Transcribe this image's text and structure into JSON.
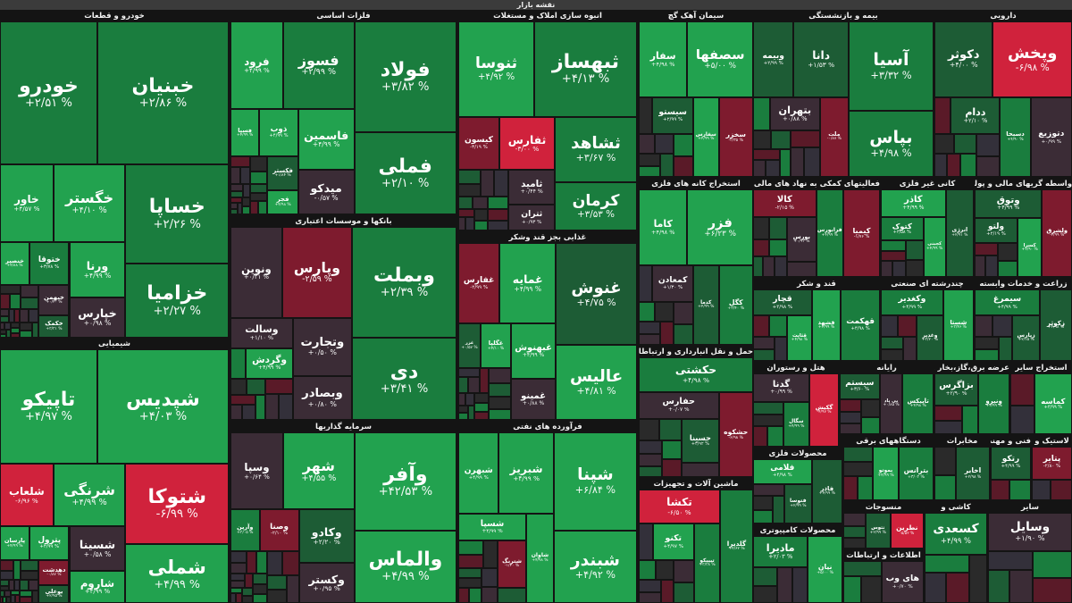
{
  "title": "نقشه بازار",
  "sectors": [
    {
      "title": "خودرو و قطعات",
      "tiles": [
        {
          "name": "خبنیان",
          "change": "+۲/۸۶ %",
          "color": "#1a7d3e"
        },
        {
          "name": "خودرو",
          "change": "+۲/۵۱ %",
          "color": "#1a7d3e"
        },
        {
          "name": "خساپا",
          "change": "+۲/۲۶ %",
          "color": "#1a7d3e"
        },
        {
          "name": "خزامیا",
          "change": "+۲/۲۷ %",
          "color": "#1a7d3e"
        },
        {
          "name": "خگستر",
          "change": "+۴/۱۰ %",
          "color": "#22a24f"
        },
        {
          "name": "خاور",
          "change": "+۴/۵۷ %",
          "color": "#22a24f"
        },
        {
          "name": "ورنا",
          "change": "+۴/۹۹ %",
          "color": "#22a24f"
        },
        {
          "name": "خپارس",
          "change": "+۰/۹۸ %",
          "color": "#3b2c36"
        },
        {
          "name": "ختوقا",
          "change": "+۳/۷۸ %",
          "color": "#1a7d3e"
        },
        {
          "name": "خنصیر",
          "change": "+۴/۸۸ %",
          "color": "#22a24f"
        },
        {
          "name": "خبهمن",
          "change": "+۰/۴۰ %",
          "color": "#3b2c36"
        },
        {
          "name": "خکمک",
          "change": "+۳/۳۱ %",
          "color": "#1d5c35"
        }
      ]
    },
    {
      "title": "شیمیایی",
      "tiles": [
        {
          "name": "شپدیس",
          "change": "+۴/۰۳ %",
          "color": "#22a24f"
        },
        {
          "name": "تاپیکو",
          "change": "+۴/۹۷ %",
          "color": "#22a24f"
        },
        {
          "name": "شتوکا",
          "change": "-۶/۹۹ %",
          "color": "#d0223c"
        },
        {
          "name": "شملی",
          "change": "+۴/۹۹ %",
          "color": "#22a24f"
        },
        {
          "name": "شرنگی",
          "change": "+۴/۹۹ %",
          "color": "#22a24f"
        },
        {
          "name": "شلعاب",
          "change": "-۶/۹۶ %",
          "color": "#d0223c"
        },
        {
          "name": "شسینا",
          "change": "+۰/۵۸ %",
          "color": "#3b2c36"
        },
        {
          "name": "شاروم",
          "change": "+۴/۹۹ %",
          "color": "#22a24f"
        },
        {
          "name": "پترول",
          "change": "+۴/۹۹ %",
          "color": "#22a24f"
        },
        {
          "name": "پارسان",
          "change": "+۴/۹۹ %",
          "color": "#22a24f"
        },
        {
          "name": "دهدشت",
          "change": "-۰/۸۷ %",
          "color": "#7e1b2e"
        },
        {
          "name": "بوعلی",
          "change": "+۲/۹۵ %",
          "color": "#1d5c35"
        }
      ]
    },
    {
      "title": "فلزات اساسی",
      "tiles": [
        {
          "name": "فولاد",
          "change": "+۳/۸۲ %",
          "color": "#1a7d3e"
        },
        {
          "name": "فملی",
          "change": "+۲/۱۰ %",
          "color": "#1a7d3e"
        },
        {
          "name": "فسوز",
          "change": "+۲/۹۹ %",
          "color": "#1a7d3e"
        },
        {
          "name": "فرود",
          "change": "+۴/۹۹ %",
          "color": "#22a24f"
        },
        {
          "name": "فاسمین",
          "change": "+۴/۹۹ %",
          "color": "#22a24f"
        },
        {
          "name": "میدکو",
          "change": "-۰/۵۷ %",
          "color": "#3b2c36"
        },
        {
          "name": "ذوب",
          "change": "+۴/۹۹ %",
          "color": "#22a24f"
        },
        {
          "name": "فسپا",
          "change": "+۴/۹۹ %",
          "color": "#22a24f"
        },
        {
          "name": "فکستر",
          "change": "+۱/۸۴ %",
          "color": "#1d5c35"
        },
        {
          "name": "فجر",
          "change": "+۴/۹۸ %",
          "color": "#22a24f"
        }
      ]
    },
    {
      "title": "بانکها و موسسات اعتباری",
      "tiles": [
        {
          "name": "وبملت",
          "change": "+۲/۳۹ %",
          "color": "#1a7d3e"
        },
        {
          "name": "دی",
          "change": "+۳/۴۱ %",
          "color": "#1a7d3e"
        },
        {
          "name": "وپارس",
          "change": "-۲/۵۹ %",
          "color": "#7e1b2e"
        },
        {
          "name": "ونوین",
          "change": "+۰/۲۱ %",
          "color": "#3b2c36"
        },
        {
          "name": "وتجارت",
          "change": "+۰/۵۰ %",
          "color": "#3b2c36"
        },
        {
          "name": "وبصادر",
          "change": "+۰/۸۰ %",
          "color": "#3b2c36"
        },
        {
          "name": "وسالت",
          "change": "+۱/۱۰ %",
          "color": "#3b2c36"
        },
        {
          "name": "وگردش",
          "change": "+۴/۹۹ %",
          "color": "#22a24f"
        }
      ]
    },
    {
      "title": "سرمایه گذاریها",
      "tiles": [
        {
          "name": "وآفر",
          "change": "+۴۲/۵۳ %",
          "color": "#22a24f"
        },
        {
          "name": "والماس",
          "change": "+۴/۹۹ %",
          "color": "#22a24f"
        },
        {
          "name": "شهر",
          "change": "+۴/۵۵ %",
          "color": "#22a24f"
        },
        {
          "name": "وسپا",
          "change": "+۰/۶۴ %",
          "color": "#3b2c36"
        },
        {
          "name": "وکادو",
          "change": "+۲/۲۰ %",
          "color": "#1d5c35"
        },
        {
          "name": "وکستر",
          "change": "+۰/۹۵ %",
          "color": "#3b2c36"
        },
        {
          "name": "وصنا",
          "change": "-۲/۱۰ %",
          "color": "#7e1b2e"
        },
        {
          "name": "وآرین",
          "change": "+۳/۰۵ %",
          "color": "#1a7d3e"
        }
      ]
    },
    {
      "title": "انبوه سازی املاک و مستغلات",
      "tiles": [
        {
          "name": "ثبهساز",
          "change": "+۴/۱۳ %",
          "color": "#1a7d3e"
        },
        {
          "name": "ثنوسا",
          "change": "+۴/۹۲ %",
          "color": "#22a24f"
        },
        {
          "name": "ثشاهد",
          "change": "+۳/۶۷ %",
          "color": "#1a7d3e"
        },
        {
          "name": "کرمان",
          "change": "+۳/۵۳ %",
          "color": "#1a7d3e"
        },
        {
          "name": "ثفارس",
          "change": "-۳/۰۰ %",
          "color": "#d0223c"
        },
        {
          "name": "کیسون",
          "change": "-۳/۱۹ %",
          "color": "#7e1b2e"
        },
        {
          "name": "ثامید",
          "change": "+۰/۴۴ %",
          "color": "#3b2c36"
        },
        {
          "name": "ثتران",
          "change": "+۰/۹۳ %",
          "color": "#3b2c36"
        }
      ]
    },
    {
      "title": "غذایی بجز قند وشکر",
      "tiles": [
        {
          "name": "غنوش",
          "change": "+۴/۷۵ %",
          "color": "#1d5c35"
        },
        {
          "name": "عالیس",
          "change": "+۴/۸۱ %",
          "color": "#22a24f"
        },
        {
          "name": "غمایه",
          "change": "+۴/۹۹ %",
          "color": "#22a24f"
        },
        {
          "name": "غفارس",
          "change": "-۲/۹۹ %",
          "color": "#7e1b2e"
        },
        {
          "name": "غبهنوش",
          "change": "+۴/۹۹ %",
          "color": "#22a24f"
        },
        {
          "name": "غمینو",
          "change": "+۰/۸۸ %",
          "color": "#3b2c36"
        },
        {
          "name": "غگلپا",
          "change": "+۴/۱۰ %",
          "color": "#22a24f"
        },
        {
          "name": "غزر",
          "change": "+۰/۵۷ %",
          "color": "#1d5c35"
        }
      ]
    },
    {
      "title": "فرآورده های نفتی",
      "tiles": [
        {
          "name": "شپنا",
          "change": "+۶/۸۴ %",
          "color": "#22a24f"
        },
        {
          "name": "شبندر",
          "change": "+۴/۹۲ %",
          "color": "#22a24f"
        },
        {
          "name": "شبریز",
          "change": "+۴/۹۹ %",
          "color": "#22a24f"
        },
        {
          "name": "شبهرن",
          "change": "+۴/۹۹ %",
          "color": "#22a24f"
        },
        {
          "name": "شاوان",
          "change": "+۴/۹۸ %",
          "color": "#22a24f"
        },
        {
          "name": "شسپا",
          "change": "+۴/۹۹ %",
          "color": "#22a24f"
        },
        {
          "name": "شترنگ",
          "change": "-۱/۲۰ %",
          "color": "#7e1b2e"
        }
      ]
    },
    {
      "title": "سیمان آهک گچ",
      "tiles": [
        {
          "name": "سصفها",
          "change": "+۵/۰۰ %",
          "color": "#22a24f"
        },
        {
          "name": "سفار",
          "change": "+۴/۹۸ %",
          "color": "#22a24f"
        },
        {
          "name": "سخزر",
          "change": "-۲/۳۵ %",
          "color": "#7e1b2e"
        },
        {
          "name": "سفارس",
          "change": "+۴/۹۹ %",
          "color": "#22a24f"
        },
        {
          "name": "سیستو",
          "change": "+۲/۹۹ %",
          "color": "#1d5c35"
        }
      ]
    },
    {
      "title": "بیمه و بازنشستگی",
      "tiles": [
        {
          "name": "آسیا",
          "change": "+۳/۳۲ %",
          "color": "#1a7d3e"
        },
        {
          "name": "بپاس",
          "change": "+۴/۹۸ %",
          "color": "#1a7d3e"
        },
        {
          "name": "دانا",
          "change": "+۱/۵۳ %",
          "color": "#1d5c35"
        },
        {
          "name": "وبیمه",
          "change": "+۲/۹۹ %",
          "color": "#1d5c35"
        },
        {
          "name": "ملت",
          "change": "-۰/۸۷ %",
          "color": "#7e1b2e"
        },
        {
          "name": "بتهران",
          "change": "+۰/۸۸ %",
          "color": "#3b2c36"
        }
      ]
    },
    {
      "title": "دارویی",
      "tiles": [
        {
          "name": "وپخش",
          "change": "-۶/۹۸ %",
          "color": "#d0223c"
        },
        {
          "name": "دکوثر",
          "change": "+۴/۰۰ %",
          "color": "#1d5c35"
        },
        {
          "name": "دتوزیع",
          "change": "+۰/۹۹ %",
          "color": "#3b2c36"
        },
        {
          "name": "دسبحا",
          "change": "+۴/۹۰ %",
          "color": "#1a7d3e"
        },
        {
          "name": "ددام",
          "change": "+۲/۱۰ %",
          "color": "#1d5c35"
        }
      ]
    },
    {
      "title": "استخراج کانه های فلزی",
      "tiles": [
        {
          "name": "فزر",
          "change": "+۶/۲۳ %",
          "color": "#22a24f"
        },
        {
          "name": "کاما",
          "change": "+۴/۹۸ %",
          "color": "#22a24f"
        },
        {
          "name": "کگل",
          "change": "+۳/۴۰ %",
          "color": "#1a7d3e"
        },
        {
          "name": "کدما",
          "change": "+۴/۹۹ %",
          "color": "#1d5c35"
        },
        {
          "name": "کمعادن",
          "change": "+۱/۳۰ %",
          "color": "#3b2c36"
        }
      ]
    },
    {
      "title": "فعالیتهای کمکی به نهاد های مالی واسط",
      "tiles": [
        {
          "name": "کیمیا",
          "change": "-۱/۷۶ %",
          "color": "#7e1b2e"
        },
        {
          "name": "فرابورس",
          "change": "+۴/۹۹ %",
          "color": "#1a7d3e"
        },
        {
          "name": "کالا",
          "change": "-۲/۱۵ %",
          "color": "#7e1b2e"
        },
        {
          "name": "بورس",
          "change": "+۰/۹۳ %",
          "color": "#3b2c36"
        }
      ]
    },
    {
      "title": "کانی غیر فلزی",
      "tiles": [
        {
          "name": "انرژی",
          "change": "+۲/۹۱ %",
          "color": "#1d5c35"
        },
        {
          "name": "کاذر",
          "change": "+۴/۹۹ %",
          "color": "#22a24f"
        },
        {
          "name": "کچینی",
          "change": "+۴/۹۹ %",
          "color": "#22a24f"
        },
        {
          "name": "کتوک",
          "change": "+۳/۵۸ %",
          "color": "#1a7d3e"
        }
      ]
    },
    {
      "title": "واسطه گریهای مالی و پولی",
      "tiles": [
        {
          "name": "ولشرق",
          "change": "-۲/۹۹ %",
          "color": "#7e1b2e"
        },
        {
          "name": "وتوق",
          "change": "+۴/۹۹ %",
          "color": "#1d5c35"
        },
        {
          "name": "کسرا",
          "change": "+۴/۹۰ %",
          "color": "#22a24f"
        },
        {
          "name": "ولتو",
          "change": "+۲/۱۹ %",
          "color": "#1d5c35"
        }
      ]
    },
    {
      "title": "قند و شکر",
      "tiles": [
        {
          "name": "قهکمت",
          "change": "+۴/۹۸ %",
          "color": "#1a7d3e"
        },
        {
          "name": "قشهد",
          "change": "+۴/۹۹ %",
          "color": "#22a24f"
        },
        {
          "name": "قچار",
          "change": "+۳/۹۸ %",
          "color": "#1d5c35"
        },
        {
          "name": "قثابت",
          "change": "+۴/۹۸ %",
          "color": "#22a24f"
        }
      ]
    },
    {
      "title": "چندرشته ای صنعتی",
      "tiles": [
        {
          "name": "شستا",
          "change": "+۳/۴۶ %",
          "color": "#22a24f"
        },
        {
          "name": "وکغدیر",
          "change": "+۴/۹۹ %",
          "color": "#1a7d3e"
        },
        {
          "name": "وغدیر",
          "change": "+۳/۲۰ %",
          "color": "#1d5c35"
        }
      ]
    },
    {
      "title": "زراعت و خدمات وابسته",
      "tiles": [
        {
          "name": "زکوثر",
          "change": "+۴/۹۸ %",
          "color": "#1d5c35"
        },
        {
          "name": "سیمرغ",
          "change": "+۴/۹۹ %",
          "color": "#1a7d3e"
        },
        {
          "name": "زپارس",
          "change": "+۲/۱۵ %",
          "color": "#1d5c35"
        }
      ]
    },
    {
      "title": "حمل و نقل انبارداری و ارتباطات",
      "tiles": [
        {
          "name": "حکشتی",
          "change": "+۴/۹۸ %",
          "color": "#1a7d3e"
        },
        {
          "name": "حشکوه",
          "change": "-۶/۹۸ %",
          "color": "#7e1b2e"
        },
        {
          "name": "حفارس",
          "change": "+۰/۰۷ %",
          "color": "#3b2c36"
        },
        {
          "name": "حسینا",
          "change": "+۳/۹۲ %",
          "color": "#1d5c35"
        }
      ]
    },
    {
      "title": "هتل و رستوران",
      "tiles": [
        {
          "name": "گکیش",
          "change": "-۴/۹۷ %",
          "color": "#d0223c"
        },
        {
          "name": "گدنا",
          "change": "+۰/۹۹ %",
          "color": "#3b2c36"
        },
        {
          "name": "سگال",
          "change": "+۴/۹۹ %",
          "color": "#1a7d3e"
        }
      ]
    },
    {
      "title": "رایانه",
      "tiles": [
        {
          "name": "تاپیکس",
          "change": "+۴/۹۸ %",
          "color": "#1a7d3e"
        },
        {
          "name": "پی پاد",
          "change": "+۰/۸۵ %",
          "color": "#3b2c36"
        },
        {
          "name": "سیستم",
          "change": "+۳/۶۰ %",
          "color": "#1d5c35"
        }
      ]
    },
    {
      "title": "عرضه برق،گاز،بخار و",
      "tiles": [
        {
          "name": "ونیرو",
          "change": "+۴/۹۹ %",
          "color": "#1a7d3e"
        },
        {
          "name": "بزاگرس",
          "change": "+۲/۹۰ %",
          "color": "#1d5c35"
        }
      ]
    },
    {
      "title": "استخراج سایر",
      "tiles": [
        {
          "name": "کماسه",
          "change": "+۴/۹۹ %",
          "color": "#22a24f"
        }
      ]
    },
    {
      "title": "ماشین آلات و تجهیزات",
      "tiles": [
        {
          "name": "گلدیرا",
          "change": "+۴/۶۲ %",
          "color": "#1a7d3e"
        },
        {
          "name": "تکشا",
          "change": "-۶/۵۰ %",
          "color": "#d0223c"
        },
        {
          "name": "تیپیکو",
          "change": "+۳/۳۸ %",
          "color": "#1a7d3e"
        },
        {
          "name": "تکنو",
          "change": "+۴/۹۷ %",
          "color": "#22a24f"
        }
      ]
    },
    {
      "title": "محصولات فلزی",
      "tiles": [
        {
          "name": "فاذر",
          "change": "+۴/۹۹ %",
          "color": "#1d5c35"
        },
        {
          "name": "فلامی",
          "change": "+۴/۹۸ %",
          "color": "#22a24f"
        },
        {
          "name": "فتوسا",
          "change": "+۲/۹۹ %",
          "color": "#1d5c35"
        }
      ]
    },
    {
      "title": "دستگاههای برقی",
      "tiles": [
        {
          "name": "بترانس",
          "change": "+۳/۰۴ %",
          "color": "#1a7d3e"
        },
        {
          "name": "بموتو",
          "change": "+۴/۹۹ %",
          "color": "#22a24f"
        }
      ]
    },
    {
      "title": "مخابرات",
      "tiles": [
        {
          "name": "اخابر",
          "change": "+۲/۹۸ %",
          "color": "#1d5c35"
        }
      ]
    },
    {
      "title": "فنی و مهندسی",
      "tiles": [
        {
          "name": "رتکو",
          "change": "+۴/۹۹ %",
          "color": "#1d5c35"
        }
      ]
    },
    {
      "title": "لاستیک و",
      "tiles": [
        {
          "name": "پتایر",
          "change": "-۲/۸۰ %",
          "color": "#7e1b2e"
        }
      ]
    },
    {
      "title": "محصولات کامپیوتری",
      "tiles": [
        {
          "name": "نیان",
          "change": "+۵/۰۰ %",
          "color": "#22a24f"
        },
        {
          "name": "مادیرا",
          "change": "+۲/۰۳ %",
          "color": "#1a7d3e"
        }
      ]
    },
    {
      "title": "منسوجات",
      "tiles": [
        {
          "name": "نطرین",
          "change": "-۵/۵۲ %",
          "color": "#d0223c"
        },
        {
          "name": "نتوس",
          "change": "+۲/۹۹ %",
          "color": "#1d5c35"
        }
      ]
    },
    {
      "title": "اطلاعات و ارتباطات",
      "tiles": [
        {
          "name": "های وب",
          "change": "+۰/۷۰ %",
          "color": "#3b2c36"
        }
      ]
    },
    {
      "title": "کاشی و",
      "tiles": [
        {
          "name": "کسعدی",
          "change": "+۴/۹۹ %",
          "color": "#1a7d3e"
        }
      ]
    },
    {
      "title": "سایر",
      "tiles": [
        {
          "name": "وسایل",
          "change": "+۱/۹۰ %",
          "color": "#3b2c36"
        }
      ]
    }
  ]
}
